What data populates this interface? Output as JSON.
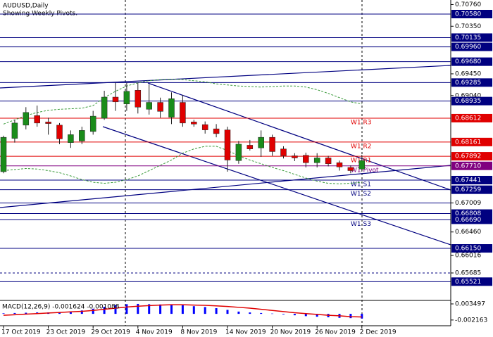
{
  "chart_data": {
    "type": "candlestick",
    "title": "AUDUSD,Daily",
    "subtitle": "Showing Weekly Pivots.",
    "categories": [
      "17 Oct 2019",
      null,
      null,
      null,
      "23 Oct 2019",
      null,
      null,
      null,
      "29 Oct 2019",
      null,
      null,
      null,
      "4 Nov 2019",
      null,
      null,
      null,
      "8 Nov 2019",
      null,
      null,
      null,
      "14 Nov 2019",
      null,
      null,
      null,
      "20 Nov 2019",
      null,
      null,
      null,
      "26 Nov 2019",
      null,
      null,
      null,
      "2 Dec 2019"
    ],
    "open": [
      0.676,
      0.6823,
      0.6848,
      0.6866,
      0.6854,
      0.6848,
      0.6815,
      0.6818,
      0.6836,
      0.6861,
      0.6901,
      0.6888,
      0.6914,
      0.6878,
      0.6891,
      0.6863,
      0.6891,
      0.6854,
      0.6849,
      0.6841,
      0.6839,
      0.6781,
      0.681,
      0.6805,
      0.6825,
      0.6803,
      0.679,
      0.6791,
      0.6777,
      0.6786,
      0.6777,
      0.6768,
      0.6765
    ],
    "high": [
      0.6828,
      0.6858,
      0.6882,
      0.6885,
      0.6862,
      0.6852,
      0.6838,
      0.6845,
      0.6875,
      0.6913,
      0.6928,
      0.6928,
      0.6928,
      0.6925,
      0.69,
      0.691,
      0.6905,
      0.6858,
      0.6855,
      0.685,
      0.6845,
      0.6818,
      0.682,
      0.6838,
      0.683,
      0.6808,
      0.6795,
      0.6796,
      0.6795,
      0.679,
      0.6781,
      0.6772,
      0.6792
    ],
    "low": [
      0.6757,
      0.6815,
      0.684,
      0.6845,
      0.683,
      0.6812,
      0.6805,
      0.6812,
      0.683,
      0.6858,
      0.6875,
      0.6875,
      0.687,
      0.6868,
      0.6862,
      0.685,
      0.6845,
      0.6845,
      0.6832,
      0.6825,
      0.676,
      0.6775,
      0.68,
      0.6788,
      0.679,
      0.6785,
      0.678,
      0.6768,
      0.6768,
      0.677,
      0.6762,
      0.6757,
      0.676
    ],
    "close": [
      0.6825,
      0.6852,
      0.6872,
      0.6852,
      0.6851,
      0.6822,
      0.683,
      0.6838,
      0.6865,
      0.6901,
      0.6892,
      0.6912,
      0.6882,
      0.6891,
      0.6874,
      0.6898,
      0.6852,
      0.685,
      0.6839,
      0.6832,
      0.6782,
      0.6812,
      0.6803,
      0.6825,
      0.6798,
      0.679,
      0.6786,
      0.6777,
      0.6786,
      0.6775,
      0.6769,
      0.6762,
      0.6781
    ],
    "up_color": "#1a8c1a",
    "down_color": "#e00000",
    "bands": {
      "color": "#3a9a3a",
      "upper": [
        0.685,
        0.6858,
        0.6866,
        0.6872,
        0.6876,
        0.6878,
        0.6879,
        0.688,
        0.6885,
        0.69,
        0.6912,
        0.6922,
        0.6928,
        0.6932,
        0.6934,
        0.6935,
        0.6934,
        0.6932,
        0.693,
        0.6926,
        0.6924,
        0.6922,
        0.6921,
        0.692,
        0.6921,
        0.6922,
        0.6922,
        0.692,
        0.6915,
        0.6908,
        0.69,
        0.6892,
        0.6888
      ],
      "lower": [
        0.6762,
        0.6764,
        0.6766,
        0.6765,
        0.6762,
        0.6758,
        0.6752,
        0.6745,
        0.674,
        0.6738,
        0.674,
        0.6745,
        0.6752,
        0.6762,
        0.6772,
        0.6782,
        0.6795,
        0.6803,
        0.6808,
        0.6808,
        0.68,
        0.679,
        0.6782,
        0.6775,
        0.6768,
        0.6762,
        0.6755,
        0.6748,
        0.6742,
        0.6738,
        0.6737,
        0.6738,
        0.674
      ]
    },
    "ylim": [
      0.65166,
      0.70846
    ],
    "yticks": [
      {
        "value": 0.7076,
        "label": "0.70760"
      },
      {
        "value": 0.7035,
        "label": "0.70350"
      },
      {
        "value": 0.6945,
        "label": "0.69450"
      },
      {
        "value": 0.6904,
        "label": "0.69040"
      },
      {
        "value": 0.6646,
        "label": "0.66460"
      },
      {
        "value": 0.66016,
        "label": "0.66016"
      }
    ],
    "levels": [
      {
        "value": 0.7058,
        "label": "0.70580",
        "color": "#000080",
        "boxed": true
      },
      {
        "value": 0.70135,
        "label": "0.70135",
        "color": "#000080",
        "boxed": true
      },
      {
        "value": 0.6996,
        "label": "0.69960",
        "color": "#000080",
        "boxed": true
      },
      {
        "value": 0.6968,
        "label": "0.69680",
        "color": "#000080",
        "boxed": true
      },
      {
        "value": 0.69285,
        "label": "0.69285",
        "color": "#000080",
        "boxed": true
      },
      {
        "value": 0.68935,
        "label": "0.68935",
        "color": "#000080",
        "boxed": true
      },
      {
        "value": 0.68612,
        "label": "0.68612",
        "color": "#e00000",
        "boxed": true,
        "name": "W1 R3"
      },
      {
        "value": 0.68161,
        "label": "0.68161",
        "color": "#e00000",
        "boxed": true,
        "name": "W1 R2"
      },
      {
        "value": 0.67892,
        "label": "0.67892",
        "color": "#e00000",
        "boxed": true,
        "name": "W1 R1"
      },
      {
        "value": 0.6771,
        "label": "0.67710",
        "color": "#800080",
        "boxed": true,
        "name": "W1 Pivot"
      },
      {
        "value": 0.67441,
        "label": "0.67441",
        "color": "#000080",
        "boxed": true,
        "name": "W1 S1"
      },
      {
        "value": 0.67259,
        "label": "0.67259",
        "color": "#000080",
        "boxed": true,
        "name": "W1 S2"
      },
      {
        "value": 0.67009,
        "label": "0.67009",
        "color": "#000080",
        "boxed": false
      },
      {
        "value": 0.66808,
        "label": "0.66808",
        "color": "#000080",
        "boxed": true
      },
      {
        "value": 0.6669,
        "label": "0.66690",
        "color": "#000080",
        "boxed": true,
        "name": "W1 S3"
      },
      {
        "value": 0.6615,
        "label": "0.66150",
        "color": "#000080",
        "boxed": true
      },
      {
        "value": 0.65685,
        "label": "0.65685",
        "color": "#000080",
        "boxed": false,
        "dashed": true
      },
      {
        "value": 0.65521,
        "label": "0.65521",
        "color": "#000080",
        "boxed": true
      }
    ],
    "macd": {
      "title": "MACD(12,26,9) -0.001624 -0.001088",
      "histogram": [
        0.0002,
        0.0003,
        0.0004,
        0.0005,
        0.0005,
        0.0006,
        0.0008,
        0.0012,
        0.0018,
        0.0025,
        0.0031,
        0.0034,
        0.0035,
        0.0034,
        0.0033,
        0.0032,
        0.003,
        0.0027,
        0.0024,
        0.002,
        0.0014,
        0.0008,
        0.0005,
        0.0003,
        0.0001,
        -0.0002,
        -0.0005,
        -0.0008,
        -0.001,
        -0.0012,
        -0.0014,
        -0.0015,
        -0.001624
      ],
      "signal": [
        -0.0005,
        -0.0003,
        -0.0001,
        0.0001,
        0.0003,
        0.0005,
        0.0007,
        0.0009,
        0.0012,
        0.0016,
        0.002,
        0.0024,
        0.0027,
        0.0029,
        0.0031,
        0.0032,
        0.0032,
        0.0031,
        0.003,
        0.0028,
        0.0026,
        0.0023,
        0.002,
        0.0016,
        0.0012,
        0.0008,
        0.0004,
        0.0001,
        -0.0002,
        -0.0005,
        -0.0007,
        -0.001,
        -0.001088
      ],
      "hist_color": "#0000ff",
      "signal_color": "#e00000",
      "ylim": [
        -0.00418,
        0.00448
      ],
      "yticks": [
        {
          "value": 0.003497,
          "label": "0.003497"
        },
        {
          "value": -0.002163,
          "label": "-0.002163"
        }
      ]
    }
  }
}
